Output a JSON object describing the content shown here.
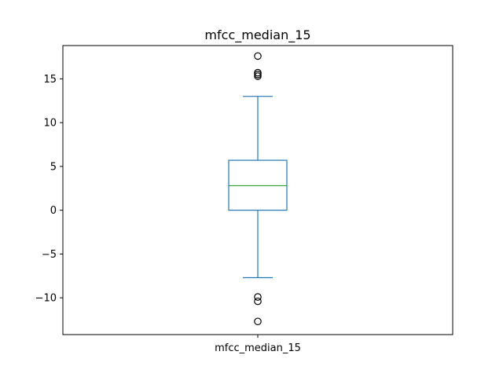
{
  "chart_data": {
    "type": "box",
    "title": "mfcc_median_15",
    "xlabel": "",
    "ylabel": "",
    "categories": [
      "mfcc_median_15"
    ],
    "ylim": [
      -14.2,
      18.8
    ],
    "yticks": [
      -10,
      -5,
      0,
      5,
      10,
      15
    ],
    "ytick_labels": [
      "−10",
      "−5",
      "0",
      "5",
      "10",
      "15"
    ],
    "grid": false,
    "series": [
      {
        "q1": 0.0,
        "median": 2.8,
        "q3": 5.7,
        "whisker_low": -7.7,
        "whisker_high": 13.0,
        "outliers": [
          17.6,
          15.7,
          15.5,
          15.3,
          -9.9,
          -10.4,
          -12.7
        ]
      }
    ],
    "colors": {
      "box": "#1f77b4",
      "median": "#2ca02c",
      "outlier": "#000000",
      "axes": "#000000"
    }
  }
}
